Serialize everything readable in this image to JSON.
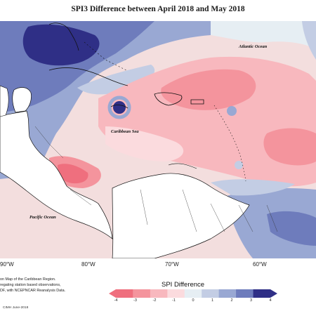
{
  "title": "SPI3 Difference between April 2018 and May 2018",
  "labels": {
    "atlantic": "Atlantic Ocean",
    "caribbean": "Caribbean Sea",
    "pacific": "Pacific Ocean"
  },
  "longitudes": [
    "90°W",
    "80°W",
    "70°W",
    "60°W"
  ],
  "footnotes": [
    "on Map of the Caribbean Region.",
    "regating station based observations,",
    "DF, with NCEPNCAR Reanalysis Data."
  ],
  "credit": "CIMH June-2018",
  "legend": {
    "title": "SPI Difference",
    "ticks": [
      "-4",
      "-3",
      "-2",
      "-1",
      "0",
      "1",
      "2",
      "3",
      "4"
    ],
    "colors": [
      "#ef6f7e",
      "#f4949d",
      "#f8b8be",
      "#fbdbde",
      "#e6eef3",
      "#c3cde4",
      "#99a8d3",
      "#6e7cbc",
      "#2f2f86"
    ]
  }
}
